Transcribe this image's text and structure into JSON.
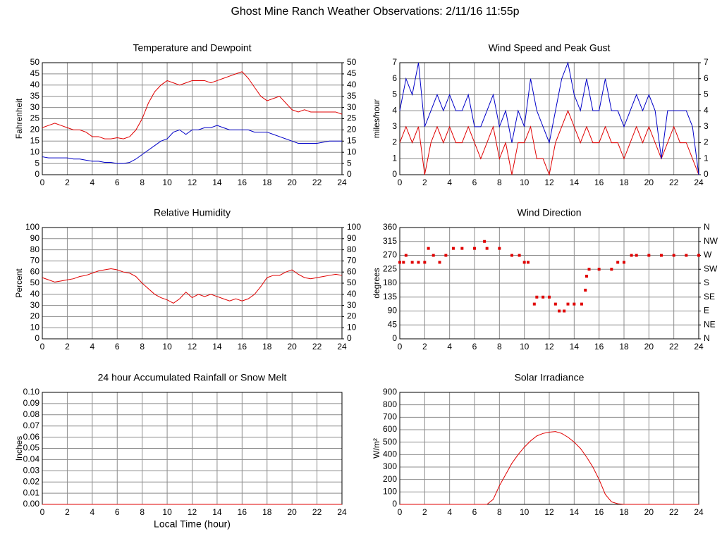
{
  "title": "Ghost Mine Ranch Weather Observations: 2/11/16 11:55p",
  "chart_data": [
    {
      "type": "line",
      "title": "Temperature and Dewpoint",
      "ylabel": "Fahrenheit",
      "x": [
        0,
        0.5,
        1,
        1.5,
        2,
        2.5,
        3,
        3.5,
        4,
        4.5,
        5,
        5.5,
        6,
        6.5,
        7,
        7.5,
        8,
        8.5,
        9,
        9.5,
        10,
        10.5,
        11,
        11.5,
        12,
        12.5,
        13,
        13.5,
        14,
        14.5,
        15,
        15.5,
        16,
        16.5,
        17,
        17.5,
        18,
        18.5,
        19,
        19.5,
        20,
        20.5,
        21,
        21.5,
        22,
        22.5,
        23,
        23.5,
        24
      ],
      "series": [
        {
          "color": "#e00000",
          "values": [
            21,
            22,
            23,
            22,
            21,
            20,
            20,
            19,
            17,
            17,
            16,
            16,
            16.5,
            16,
            17,
            20,
            25,
            32,
            37,
            40,
            42,
            41,
            40,
            41,
            42,
            42,
            42,
            41,
            42,
            43,
            44,
            45,
            46,
            43,
            39,
            35,
            33,
            34,
            35,
            32,
            29,
            28,
            29,
            28,
            28,
            28,
            28,
            28,
            27
          ]
        },
        {
          "color": "#0000c8",
          "values": [
            8,
            7.5,
            7.5,
            7.5,
            7.5,
            7,
            7,
            6.5,
            6,
            6,
            5.5,
            5.5,
            5,
            5,
            5.5,
            7,
            9,
            11,
            13,
            15,
            16,
            19,
            20,
            18,
            20,
            20,
            21,
            21,
            22,
            21,
            20,
            20,
            20,
            20,
            19,
            19,
            19,
            18,
            17,
            16,
            15,
            14,
            14,
            14,
            14,
            14.5,
            15,
            15,
            15
          ]
        }
      ],
      "xlim": [
        0,
        24
      ],
      "xticks": [
        0,
        2,
        4,
        6,
        8,
        10,
        12,
        14,
        16,
        18,
        20,
        22,
        24
      ],
      "ylim": [
        0,
        50
      ],
      "yticks": [
        0,
        5,
        10,
        15,
        20,
        25,
        30,
        35,
        40,
        45,
        50
      ],
      "y2lim": [
        0,
        50
      ],
      "y2ticks": [
        0,
        5,
        10,
        15,
        20,
        25,
        30,
        35,
        40,
        45,
        50
      ],
      "grid": true
    },
    {
      "type": "line",
      "title": "Wind Speed and Peak Gust",
      "ylabel": "miles/hour",
      "x": [
        0,
        0.5,
        1,
        1.5,
        2,
        2.5,
        3,
        3.5,
        4,
        4.5,
        5,
        5.5,
        6,
        6.5,
        7,
        7.5,
        8,
        8.5,
        9,
        9.5,
        10,
        10.5,
        11,
        11.5,
        12,
        12.5,
        13,
        13.5,
        14,
        14.5,
        15,
        15.5,
        16,
        16.5,
        17,
        17.5,
        18,
        18.5,
        19,
        19.5,
        20,
        20.5,
        21,
        21.5,
        22,
        22.5,
        23,
        23.5,
        24
      ],
      "series": [
        {
          "color": "#e00000",
          "values": [
            2,
            3,
            2,
            3,
            0,
            2,
            3,
            2,
            3,
            2,
            2,
            3,
            2,
            1,
            2,
            3,
            1,
            2,
            0,
            2,
            2,
            3,
            1,
            1,
            0,
            2,
            3,
            4,
            3,
            2,
            3,
            2,
            2,
            3,
            2,
            2,
            1,
            2,
            3,
            2,
            3,
            2,
            1,
            2,
            3,
            2,
            2,
            1,
            0
          ]
        },
        {
          "color": "#0000c8",
          "values": [
            4,
            6,
            5,
            7,
            3,
            4,
            5,
            4,
            5,
            4,
            4,
            5,
            3,
            3,
            4,
            5,
            3,
            4,
            2,
            4,
            3,
            6,
            4,
            3,
            2,
            4,
            6,
            7,
            5,
            4,
            6,
            4,
            4,
            6,
            4,
            4,
            3,
            4,
            5,
            4,
            5,
            4,
            1,
            4,
            4,
            4,
            4,
            3,
            0
          ]
        }
      ],
      "xlim": [
        0,
        24
      ],
      "xticks": [
        0,
        2,
        4,
        6,
        8,
        10,
        12,
        14,
        16,
        18,
        20,
        22,
        24
      ],
      "ylim": [
        0,
        7
      ],
      "yticks": [
        0,
        1,
        2,
        3,
        4,
        5,
        6,
        7
      ],
      "y2lim": [
        0,
        7
      ],
      "y2ticks": [
        0,
        1,
        2,
        3,
        4,
        5,
        6,
        7
      ],
      "grid": true
    },
    {
      "type": "line",
      "title": "Relative Humidity",
      "ylabel": "Percent",
      "x": [
        0,
        0.5,
        1,
        1.5,
        2,
        2.5,
        3,
        3.5,
        4,
        4.5,
        5,
        5.5,
        6,
        6.5,
        7,
        7.5,
        8,
        8.5,
        9,
        9.5,
        10,
        10.5,
        11,
        11.5,
        12,
        12.5,
        13,
        13.5,
        14,
        14.5,
        15,
        15.5,
        16,
        16.5,
        17,
        17.5,
        18,
        18.5,
        19,
        19.5,
        20,
        20.5,
        21,
        21.5,
        22,
        22.5,
        23,
        23.5,
        24
      ],
      "series": [
        {
          "color": "#e00000",
          "values": [
            55,
            53,
            51,
            52,
            53,
            54,
            56,
            57,
            59,
            61,
            62,
            63,
            62,
            60,
            59,
            56,
            50,
            45,
            40,
            37,
            35,
            32,
            36,
            42,
            37,
            40,
            38,
            40,
            38,
            36,
            34,
            36,
            34,
            36,
            40,
            47,
            55,
            57,
            57,
            60,
            62,
            58,
            55,
            54,
            55,
            56,
            57,
            58,
            57
          ]
        }
      ],
      "xlim": [
        0,
        24
      ],
      "xticks": [
        0,
        2,
        4,
        6,
        8,
        10,
        12,
        14,
        16,
        18,
        20,
        22,
        24
      ],
      "ylim": [
        0,
        100
      ],
      "yticks": [
        0,
        10,
        20,
        30,
        40,
        50,
        60,
        70,
        80,
        90,
        100
      ],
      "y2lim": [
        0,
        100
      ],
      "y2ticks": [
        0,
        10,
        20,
        30,
        40,
        50,
        60,
        70,
        80,
        90,
        100
      ],
      "grid": true
    },
    {
      "type": "scatter",
      "title": "Wind Direction",
      "ylabel": "degrees",
      "x": [
        0,
        0.3,
        0.5,
        1,
        1.5,
        2,
        2.3,
        2.7,
        3.2,
        3.7,
        4.3,
        5,
        6,
        6.8,
        7,
        8,
        9,
        9.6,
        10,
        10.3,
        10.8,
        11,
        11.5,
        12,
        12.5,
        12.8,
        13.2,
        13.5,
        14,
        14.6,
        14.9,
        15,
        15.2,
        16,
        17,
        17.5,
        18,
        18.6,
        19,
        20,
        21,
        22,
        23,
        24
      ],
      "series": [
        {
          "color": "#e00000",
          "values": [
            247.5,
            247.5,
            270,
            247.5,
            247.5,
            247.5,
            292.5,
            270,
            247.5,
            270,
            292.5,
            292.5,
            292.5,
            315,
            292.5,
            292.5,
            270,
            270,
            247.5,
            247.5,
            112.5,
            135,
            135,
            135,
            112.5,
            90,
            90,
            112.5,
            112.5,
            112.5,
            157.5,
            202.5,
            225,
            225,
            225,
            247.5,
            247.5,
            270,
            270,
            270,
            270,
            270,
            270,
            270
          ]
        }
      ],
      "xlim": [
        0,
        24
      ],
      "xticks": [
        0,
        2,
        4,
        6,
        8,
        10,
        12,
        14,
        16,
        18,
        20,
        22,
        24
      ],
      "ylim": [
        0,
        360
      ],
      "yticks": [
        0,
        45,
        90,
        135,
        180,
        225,
        270,
        315,
        360
      ],
      "y2lim": [
        0,
        360
      ],
      "y2ticks": [
        {
          "value": 0,
          "label": "N"
        },
        {
          "value": 45,
          "label": "NE"
        },
        {
          "value": 90,
          "label": "E"
        },
        {
          "value": 135,
          "label": "SE"
        },
        {
          "value": 180,
          "label": "S"
        },
        {
          "value": 225,
          "label": "SW"
        },
        {
          "value": 270,
          "label": "W"
        },
        {
          "value": 315,
          "label": "NW"
        },
        {
          "value": 360,
          "label": "N"
        }
      ],
      "grid": true
    },
    {
      "type": "line",
      "title": "24 hour Accumulated Rainfall or Snow Melt",
      "ylabel": "Inches",
      "xlabel": "Local Time (hour)",
      "x": [
        0,
        24
      ],
      "series": [
        {
          "color": "#e00000",
          "values": [
            0,
            0
          ]
        }
      ],
      "xlim": [
        0,
        24
      ],
      "xticks": [
        0,
        2,
        4,
        6,
        8,
        10,
        12,
        14,
        16,
        18,
        20,
        22,
        24
      ],
      "ylim": [
        0,
        0.1
      ],
      "yticks": [
        {
          "value": 0,
          "label": "0.00"
        },
        {
          "value": 0.01,
          "label": "0.01"
        },
        {
          "value": 0.02,
          "label": "0.02"
        },
        {
          "value": 0.03,
          "label": "0.03"
        },
        {
          "value": 0.04,
          "label": "0.04"
        },
        {
          "value": 0.05,
          "label": "0.05"
        },
        {
          "value": 0.06,
          "label": "0.06"
        },
        {
          "value": 0.07,
          "label": "0.07"
        },
        {
          "value": 0.08,
          "label": "0.08"
        },
        {
          "value": 0.09,
          "label": "0.09"
        },
        {
          "value": 0.1,
          "label": "0.10"
        }
      ],
      "grid": true
    },
    {
      "type": "line",
      "title": "Solar Irradiance",
      "ylabel": "W/m²",
      "x": [
        0,
        0.5,
        1,
        1.5,
        2,
        2.5,
        3,
        3.5,
        4,
        4.5,
        5,
        5.5,
        6,
        6.5,
        7,
        7.5,
        8,
        8.5,
        9,
        9.5,
        10,
        10.5,
        11,
        11.5,
        12,
        12.5,
        13,
        13.5,
        14,
        14.5,
        15,
        15.5,
        16,
        16.5,
        17,
        17.5,
        18,
        18.5,
        19,
        19.5,
        20,
        20.5,
        21,
        21.5,
        22,
        22.5,
        23,
        23.5,
        24
      ],
      "series": [
        {
          "color": "#e00000",
          "values": [
            0,
            0,
            0,
            0,
            0,
            0,
            0,
            0,
            0,
            0,
            0,
            0,
            0,
            0,
            0,
            40,
            150,
            240,
            330,
            400,
            460,
            510,
            550,
            570,
            580,
            585,
            570,
            540,
            500,
            450,
            380,
            300,
            200,
            80,
            20,
            5,
            0,
            0,
            0,
            0,
            0,
            0,
            0,
            0,
            0,
            0,
            0,
            0,
            0
          ]
        }
      ],
      "xlim": [
        0,
        24
      ],
      "xticks": [
        0,
        2,
        4,
        6,
        8,
        10,
        12,
        14,
        16,
        18,
        20,
        22,
        24
      ],
      "ylim": [
        0,
        900
      ],
      "yticks": [
        0,
        100,
        200,
        300,
        400,
        500,
        600,
        700,
        800,
        900
      ],
      "grid": true
    }
  ]
}
